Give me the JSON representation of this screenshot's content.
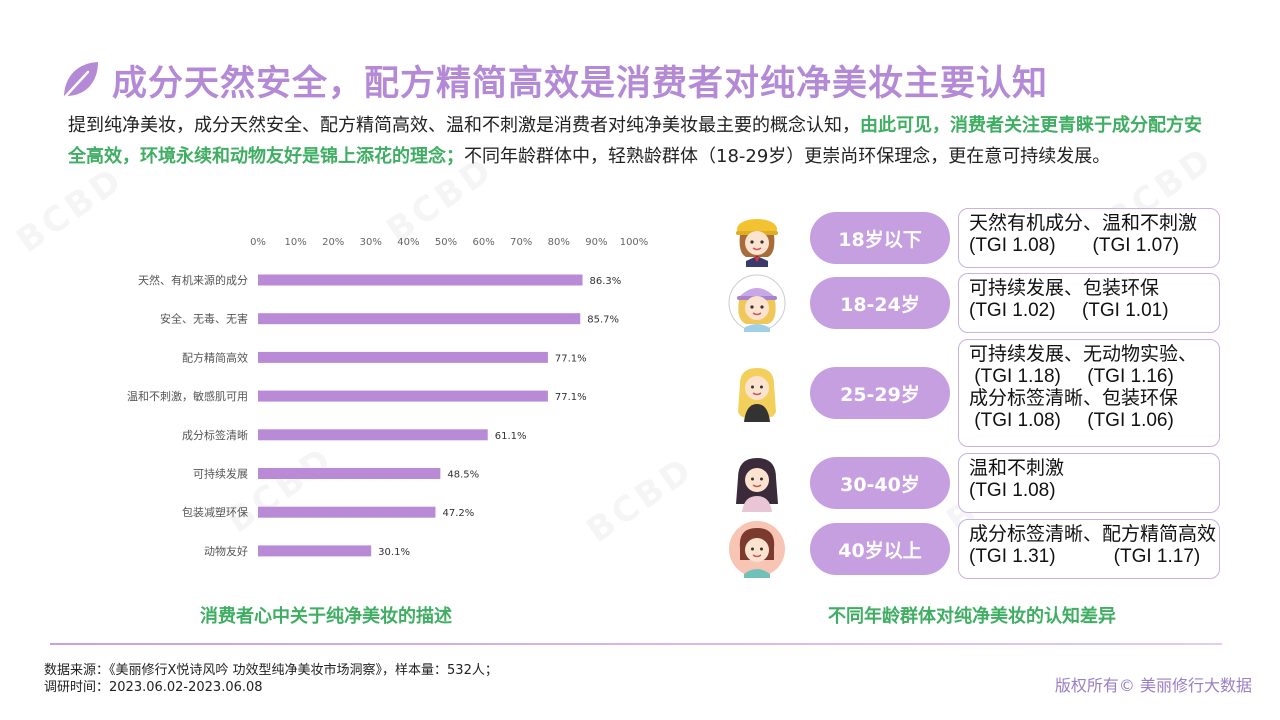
{
  "title": "成分天然安全，配方精简高效是消费者对纯净美妆主要认知",
  "intro": {
    "part1": "提到纯净美妆，成分天然安全、配方精简高效、温和不刺激是消费者对纯净美妆最主要的概念认知，",
    "highlight": "由此可见，消费者关注更青睐于成分配方安全高效，环境永续和动物友好是锦上添花的理念；",
    "part2": "不同年龄群体中，轻熟龄群体（18-29岁）更崇尚环保理念，更在意可持续发展。"
  },
  "chart_data": {
    "type": "bar",
    "orientation": "horizontal",
    "categories": [
      "天然、有机来源的成分",
      "安全、无毒、无害",
      "配方精简高效",
      "温和不刺激，敏感肌可用",
      "成分标签清晰",
      "可持续发展",
      "包装减塑环保",
      "动物友好"
    ],
    "values": [
      86.3,
      85.7,
      77.1,
      77.1,
      61.1,
      48.5,
      47.2,
      30.1
    ],
    "value_labels": [
      "86.3%",
      "85.7%",
      "77.1%",
      "77.1%",
      "61.1%",
      "48.5%",
      "47.2%",
      "30.1%"
    ],
    "xticks": [
      "0%",
      "10%",
      "20%",
      "30%",
      "40%",
      "50%",
      "60%",
      "70%",
      "80%",
      "90%",
      "100%"
    ],
    "xlim": [
      0,
      100
    ],
    "axis_position": "top",
    "grid": false,
    "bar_color": "#b98bd6"
  },
  "left_caption": "消费者心中关于纯净美妆的描述",
  "right_caption": "不同年龄群体对纯净美妆的认知差异",
  "age_groups": [
    {
      "label": "18岁以下",
      "avatar": "girl-yellow-hat-icon",
      "lines": [
        "天然有机成分、温和不刺激",
        "(TGI 1.08)       (TGI 1.07)"
      ]
    },
    {
      "label": "18-24岁",
      "avatar": "girl-purple-cap-icon",
      "lines": [
        "可持续发展、包装环保",
        "(TGI 1.02)     (TGI 1.01)"
      ]
    },
    {
      "label": "25-29岁",
      "avatar": "blonde-woman-icon",
      "lines": [
        "可持续发展、无动物实验、",
        " (TGI 1.18)     (TGI 1.16)",
        "成分标签清晰、包装环保",
        " (TGI 1.08)     (TGI 1.06)"
      ]
    },
    {
      "label": "30-40岁",
      "avatar": "dark-hair-woman-icon",
      "lines": [
        "温和不刺激",
        "(TGI 1.08)"
      ]
    },
    {
      "label": "40岁以上",
      "avatar": "mature-woman-icon",
      "lines": [
        "成分标签清晰、配方精简高效",
        "(TGI 1.31)           (TGI 1.17)"
      ]
    }
  ],
  "footer": {
    "source": "数据来源：《美丽修行X悦诗风吟 功效型纯净美妆市场洞察》，样本量：532人；",
    "period": "调研时间：2023.06.02-2023.06.08",
    "copyright": "版权所有© 美丽修行大数据"
  },
  "colors": {
    "accent_purple": "#b48ad6",
    "highlight_green": "#3fae63",
    "pill_purple": "#c69fe0"
  }
}
